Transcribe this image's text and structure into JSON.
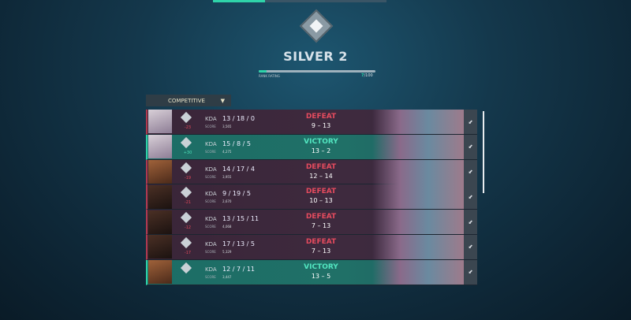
{
  "rank": {
    "title": "SILVER 2",
    "rating_label": "RANK RATING",
    "rating_value": "7",
    "rating_max": "/100",
    "progress_percent": 7
  },
  "mode": {
    "label": "COMPETITIVE",
    "caret": "▼"
  },
  "kda_label": "KDA",
  "score_label": "SCORE",
  "matches": [
    {
      "result": "DEFEAT",
      "score": "9 – 13",
      "kda": "13 / 18 / 0",
      "points": "3,565",
      "rr": "-23",
      "win": false,
      "agent": "a"
    },
    {
      "result": "VICTORY",
      "score": "13 – 2",
      "kda": "15 / 8 / 5",
      "points": "4,275",
      "rr": "+30",
      "win": true,
      "agent": "a"
    },
    {
      "result": "DEFEAT",
      "score": "12 – 14",
      "kda": "14 / 17 / 4",
      "points": "3,955",
      "rr": "-19",
      "win": false,
      "agent": "b"
    },
    {
      "result": "DEFEAT",
      "score": "10 – 13",
      "kda": "9 / 19 / 5",
      "points": "2,670",
      "rr": "-21",
      "win": false,
      "agent": "c"
    },
    {
      "result": "DEFEAT",
      "score": "7 – 13",
      "kda": "13 / 15 / 11",
      "points": "4,068",
      "rr": "-12",
      "win": false,
      "agent": "c"
    },
    {
      "result": "DEFEAT",
      "score": "7 – 13",
      "kda": "17 / 13 / 5",
      "points": "5,329",
      "rr": "-17",
      "win": false,
      "agent": "c"
    },
    {
      "result": "VICTORY",
      "score": "13 – 5",
      "kda": "12 / 7 / 11",
      "points": "3,447",
      "rr": "",
      "win": true,
      "agent": "b"
    }
  ],
  "colors": {
    "accent": "#2fd3a9",
    "defeat": "#e54b5e",
    "victory": "#52e6c0"
  }
}
